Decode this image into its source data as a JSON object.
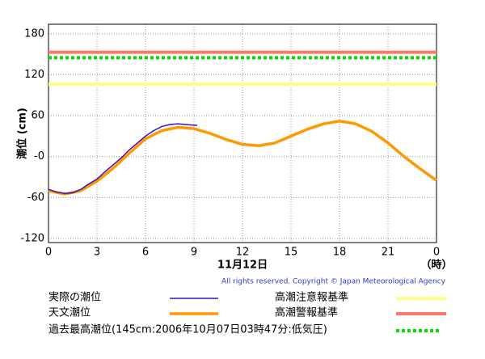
{
  "chart_data": {
    "type": "line",
    "ylabel": "潮位 (cm)",
    "xlabel": "11月12日",
    "xunit": "（時）",
    "copyright": "All rights reserved. Copyright © Japan Meteorological Agency",
    "xlim": [
      0,
      24
    ],
    "xticks": [
      0,
      3,
      6,
      9,
      12,
      15,
      18,
      21,
      {
        "value": 24,
        "label": "0"
      }
    ],
    "ylim": [
      -126,
      194
    ],
    "yticks": [
      {
        "value": -120,
        "label": "-120"
      },
      {
        "value": -60,
        "label": "-60"
      },
      {
        "value": 0,
        "label": "-0"
      },
      60,
      120,
      180
    ],
    "grid": true,
    "series": [
      {
        "name": "実際の潮位",
        "color": "#3311cc",
        "x": [
          0,
          0.5,
          1,
          1.5,
          2,
          2.5,
          3,
          3.5,
          4,
          4.5,
          5,
          5.5,
          6,
          6.5,
          7,
          7.5,
          8,
          8.5,
          9,
          9.2
        ],
        "values": [
          -48,
          -52,
          -54,
          -53,
          -48,
          -40,
          -33,
          -22,
          -12,
          -2,
          10,
          20,
          30,
          38,
          44,
          47,
          48,
          47,
          46,
          46
        ]
      },
      {
        "name": "天文潮位",
        "color": "#ff9900",
        "x": [
          0,
          1,
          2,
          3,
          4,
          5,
          6,
          7,
          8,
          9,
          10,
          11,
          12,
          13,
          14,
          15,
          16,
          17,
          18,
          19,
          20,
          21,
          22,
          23,
          24
        ],
        "values": [
          -50,
          -55,
          -50,
          -36,
          -17,
          5,
          26,
          38,
          43,
          41,
          34,
          25,
          18,
          16,
          20,
          30,
          40,
          48,
          52,
          48,
          37,
          20,
          0,
          -18,
          -35
        ]
      }
    ],
    "levels": [
      {
        "name": "高潮注意報基準",
        "color": "#ffff88",
        "value": 106
      },
      {
        "name": "高潮警報基準",
        "color": "#ff7766",
        "value": 153
      },
      {
        "name": "過去最高潮位(145cm:2006年10月07日03時47分:低気圧)",
        "color": "#00dd00",
        "value": 145,
        "dashed": true
      }
    ]
  }
}
